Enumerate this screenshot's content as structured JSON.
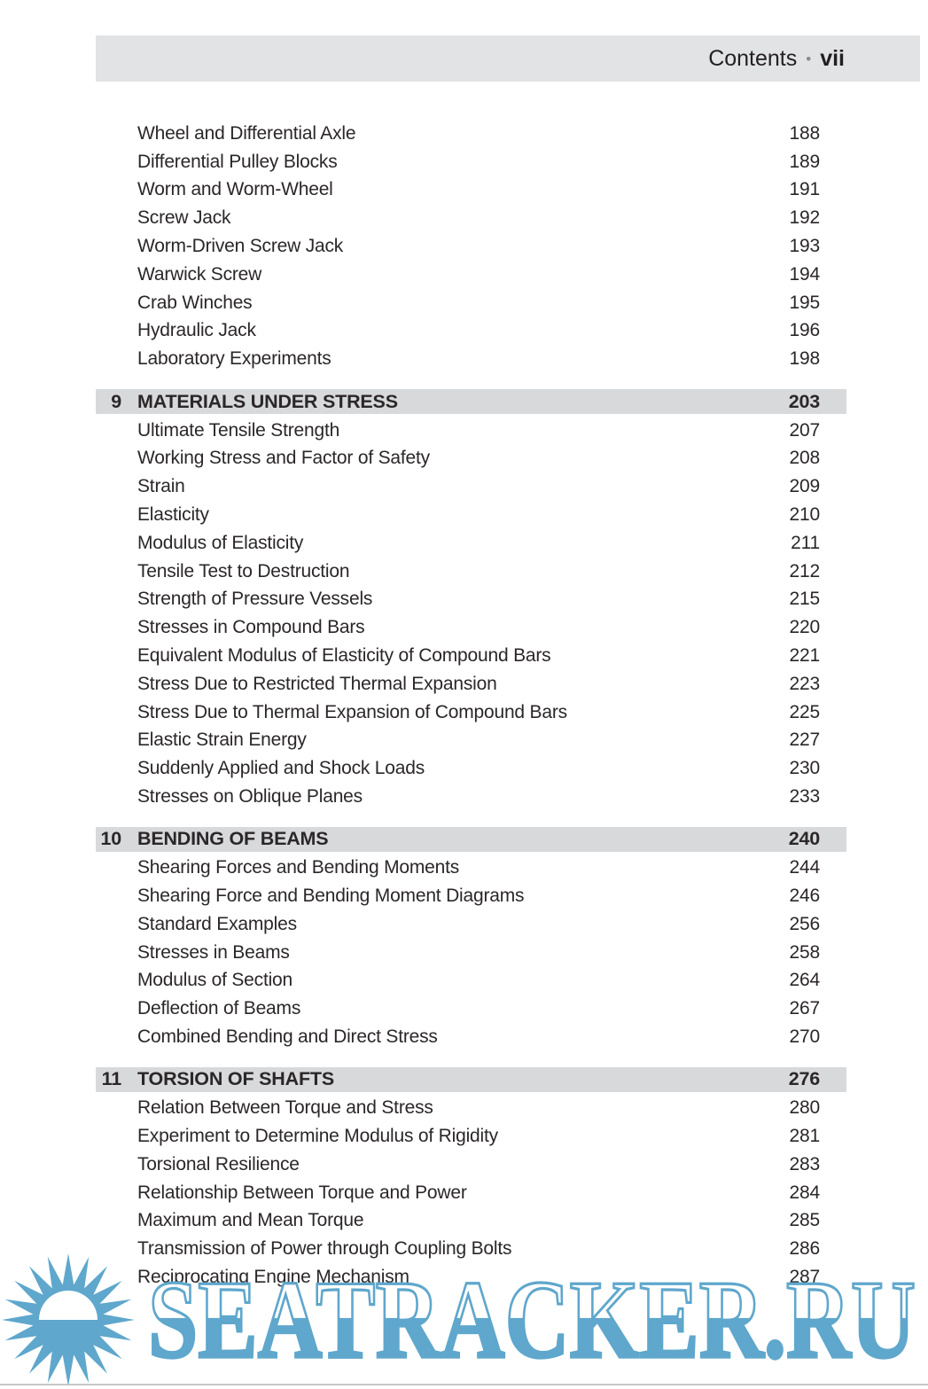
{
  "header": {
    "title": "Contents",
    "separator": "•",
    "page_label": "vii"
  },
  "toc": {
    "groups": [
      {
        "items": [
          {
            "label": "Wheel and Differential Axle",
            "page": "188"
          },
          {
            "label": "Differential Pulley Blocks",
            "page": "189"
          },
          {
            "label": "Worm and Worm-Wheel",
            "page": "191"
          },
          {
            "label": "Screw Jack",
            "page": "192"
          },
          {
            "label": "Worm-Driven Screw Jack",
            "page": "193"
          },
          {
            "label": "Warwick Screw",
            "page": "194"
          },
          {
            "label": "Crab Winches",
            "page": "195"
          },
          {
            "label": "Hydraulic Jack",
            "page": "196"
          },
          {
            "label": "Laboratory Experiments",
            "page": "198"
          }
        ]
      },
      {
        "number": "9",
        "title": "MATERIALS UNDER STRESS",
        "page": "203",
        "items": [
          {
            "label": "Ultimate Tensile Strength",
            "page": "207"
          },
          {
            "label": "Working Stress and Factor of Safety",
            "page": "208"
          },
          {
            "label": "Strain",
            "page": "209"
          },
          {
            "label": "Elasticity",
            "page": "210"
          },
          {
            "label": "Modulus of Elasticity",
            "page": "211"
          },
          {
            "label": "Tensile Test to Destruction",
            "page": "212"
          },
          {
            "label": "Strength of Pressure Vessels",
            "page": "215"
          },
          {
            "label": "Stresses in Compound Bars",
            "page": "220"
          },
          {
            "label": "Equivalent Modulus of Elasticity of Compound Bars",
            "page": "221"
          },
          {
            "label": "Stress Due to Restricted Thermal Expansion",
            "page": "223"
          },
          {
            "label": "Stress Due to Thermal Expansion of Compound Bars",
            "page": "225"
          },
          {
            "label": "Elastic Strain Energy",
            "page": "227"
          },
          {
            "label": "Suddenly Applied and Shock Loads",
            "page": "230"
          },
          {
            "label": "Stresses on Oblique Planes",
            "page": "233"
          }
        ]
      },
      {
        "number": "10",
        "title": "BENDING OF BEAMS",
        "page": "240",
        "items": [
          {
            "label": "Shearing Forces and Bending Moments",
            "page": "244"
          },
          {
            "label": "Shearing Force and Bending Moment Diagrams",
            "page": "246"
          },
          {
            "label": "Standard Examples",
            "page": "256"
          },
          {
            "label": "Stresses in Beams",
            "page": "258"
          },
          {
            "label": "Modulus of Section",
            "page": "264"
          },
          {
            "label": "Deflection of Beams",
            "page": "267"
          },
          {
            "label": "Combined Bending and Direct Stress",
            "page": "270"
          }
        ]
      },
      {
        "number": "11",
        "title": "TORSION OF SHAFTS",
        "page": "276",
        "items": [
          {
            "label": "Relation Between Torque and Stress",
            "page": "280"
          },
          {
            "label": "Experiment to Determine Modulus of Rigidity",
            "page": "281"
          },
          {
            "label": "Torsional Resilience",
            "page": "283"
          },
          {
            "label": "Relationship Between Torque and Power",
            "page": "284"
          },
          {
            "label": "Maximum and Mean Torque",
            "page": "285"
          },
          {
            "label": "Transmission of Power through Coupling Bolts",
            "page": "286"
          },
          {
            "label": "Reciprocating Engine Mechanism",
            "page": "287"
          }
        ]
      }
    ]
  },
  "watermark": {
    "text": "SEATRACKER.RU",
    "color": "#5fa7cc"
  },
  "colors": {
    "header_bar": "#e2e3e5",
    "section_bar": "#d8d9db",
    "text": "#2b2728",
    "bottom_edge": "#c6c7c9"
  }
}
